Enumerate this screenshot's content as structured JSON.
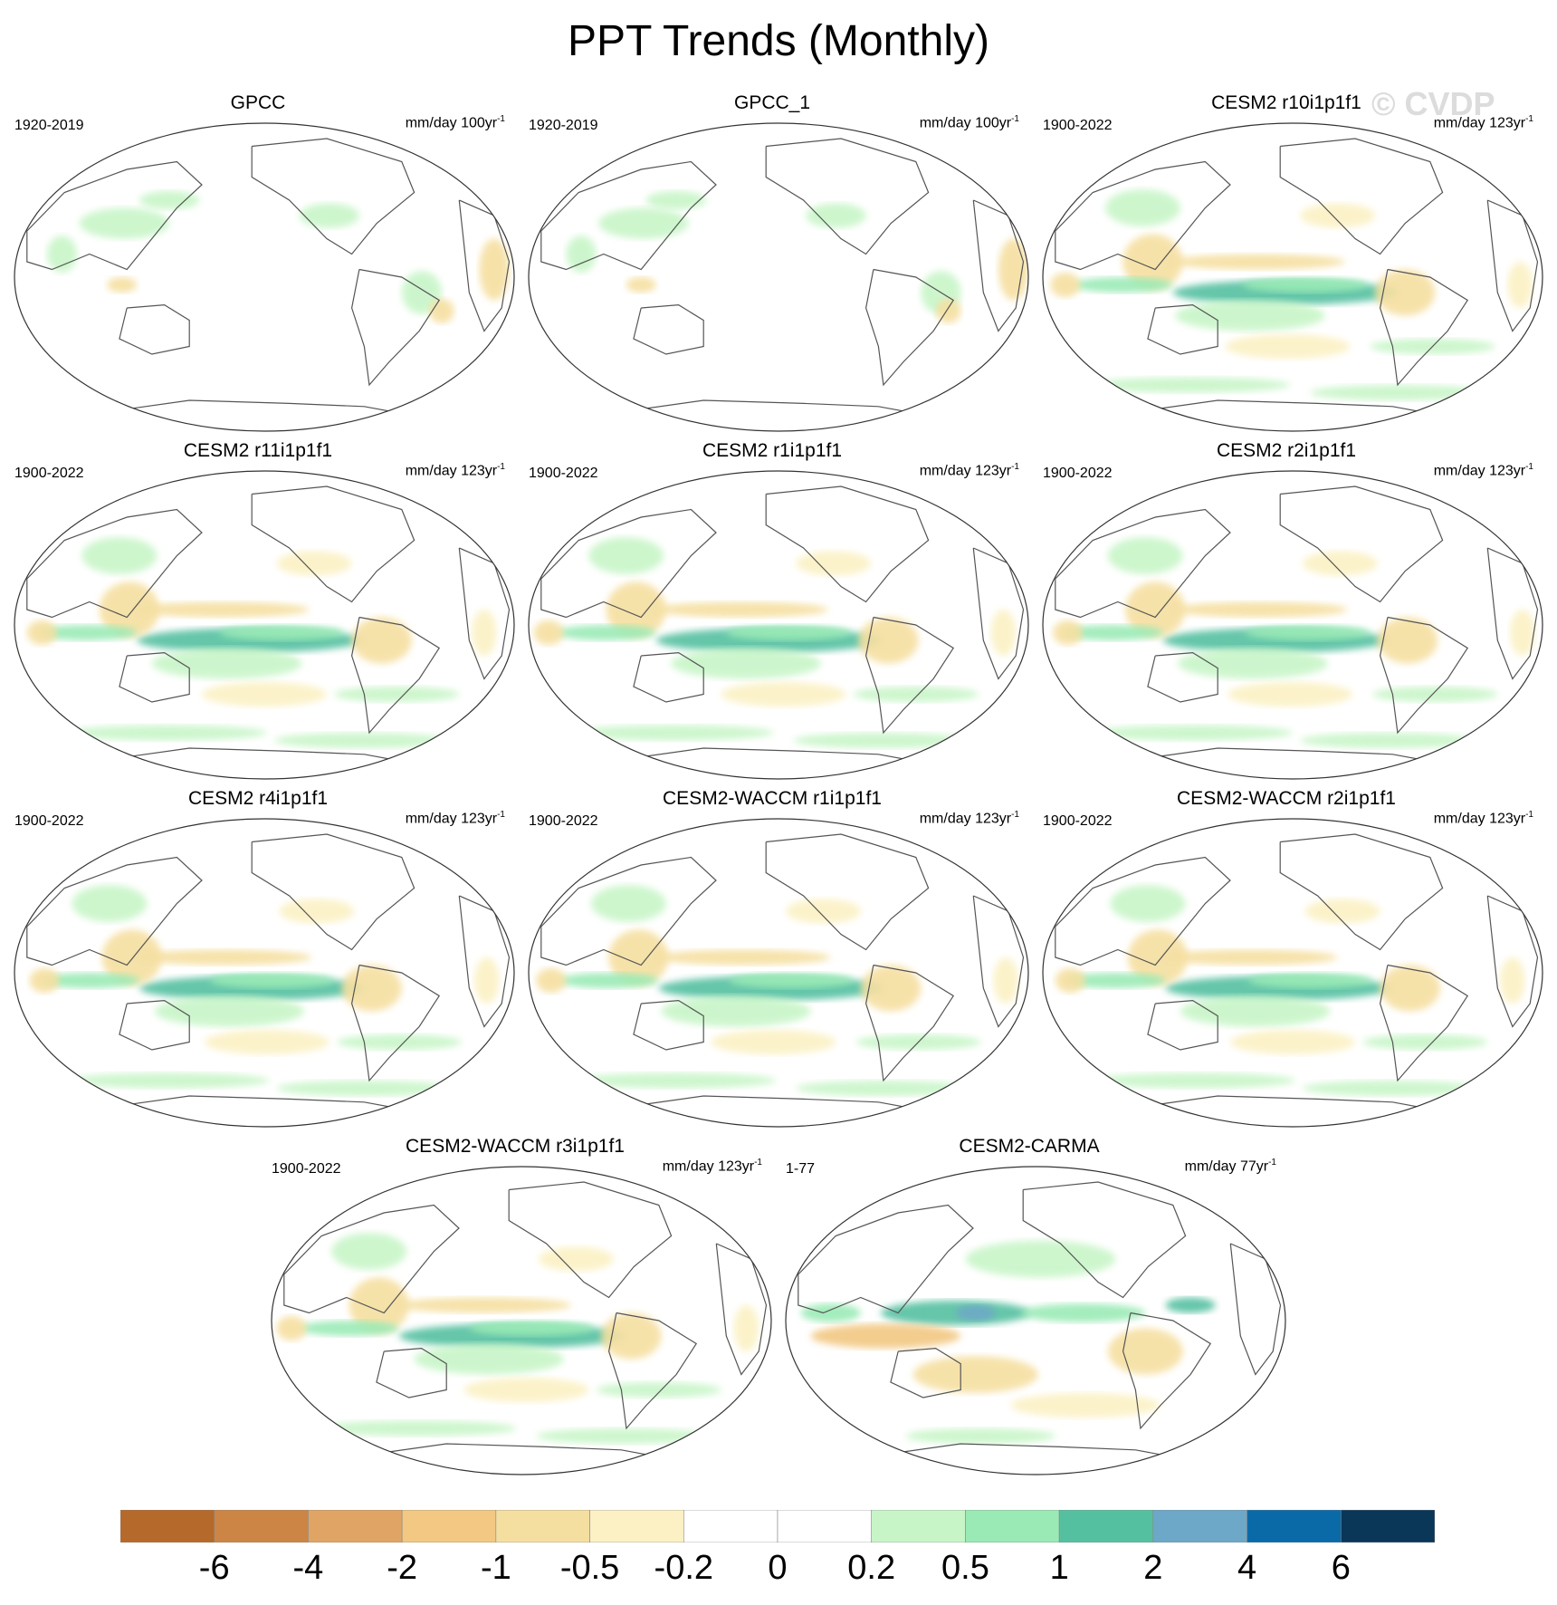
{
  "title": "PPT Trends (Monthly)",
  "watermark": "© CVDP",
  "panels": [
    {
      "title": "GPCC",
      "period": "1920-2019",
      "units": "mm/day 100yr",
      "units_sup": "-1",
      "pattern": "obs"
    },
    {
      "title": "GPCC_1",
      "period": "1920-2019",
      "units": "mm/day 100yr",
      "units_sup": "-1",
      "pattern": "obs"
    },
    {
      "title": "CESM2 r10i1p1f1",
      "period": "1900-2022",
      "units": "mm/day 123yr",
      "units_sup": "-1",
      "pattern": "model"
    },
    {
      "title": "CESM2 r11i1p1f1",
      "period": "1900-2022",
      "units": "mm/day 123yr",
      "units_sup": "-1",
      "pattern": "model"
    },
    {
      "title": "CESM2 r1i1p1f1",
      "period": "1900-2022",
      "units": "mm/day 123yr",
      "units_sup": "-1",
      "pattern": "model"
    },
    {
      "title": "CESM2 r2i1p1f1",
      "period": "1900-2022",
      "units": "mm/day 123yr",
      "units_sup": "-1",
      "pattern": "model"
    },
    {
      "title": "CESM2 r4i1p1f1",
      "period": "1900-2022",
      "units": "mm/day 123yr",
      "units_sup": "-1",
      "pattern": "model"
    },
    {
      "title": "CESM2-WACCM r1i1p1f1",
      "period": "1900-2022",
      "units": "mm/day 123yr",
      "units_sup": "-1",
      "pattern": "model"
    },
    {
      "title": "CESM2-WACCM r2i1p1f1",
      "period": "1900-2022",
      "units": "mm/day 123yr",
      "units_sup": "-1",
      "pattern": "model"
    },
    {
      "title": "CESM2-WACCM r3i1p1f1",
      "period": "1900-2022",
      "units": "mm/day 123yr",
      "units_sup": "-1",
      "pattern": "model"
    },
    {
      "title": "CESM2-CARMA",
      "period": "1-77",
      "units": "mm/day 77yr",
      "units_sup": "-1",
      "pattern": "carma"
    }
  ],
  "colorbar": {
    "colors": [
      "#b5692a",
      "#cc8544",
      "#e0a565",
      "#f2c882",
      "#f5dfa0",
      "#fbf1c4",
      "#ffffff",
      "#ffffff",
      "#c8f5c8",
      "#9aeab5",
      "#55c0a0",
      "#6ea8c8",
      "#0a6aa8",
      "#0a3658"
    ],
    "labels": [
      "-6",
      "-4",
      "-2",
      "-1",
      "-0.5",
      "-0.2",
      "0",
      "0.2",
      "0.5",
      "1",
      "2",
      "4",
      "6"
    ]
  }
}
